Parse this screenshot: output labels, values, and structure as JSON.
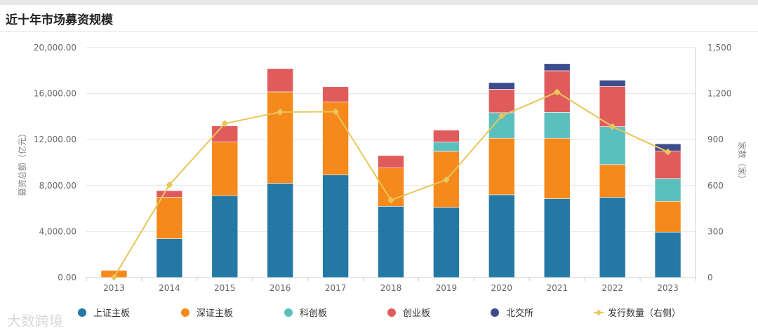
{
  "page": {
    "title": "近十年市场募资规模"
  },
  "watermark": "大数跨境",
  "colors": {
    "上证主板": "#2478a4",
    "深证主板": "#f5891b",
    "科创板": "#5bbfbe",
    "创业板": "#e05c5c",
    "北交所": "#3d4d8c",
    "line": "#e8c65a"
  },
  "chart_data": {
    "type": "bar",
    "stacked": true,
    "title": "近十年市场募资规模",
    "categories": [
      "2013",
      "2014",
      "2015",
      "2016",
      "2017",
      "2018",
      "2019",
      "2020",
      "2021",
      "2022",
      "2023"
    ],
    "series": [
      {
        "name": "上证主板",
        "values": [
          0,
          3380,
          7120,
          8200,
          8920,
          6200,
          6100,
          7200,
          6860,
          6980,
          3950
        ]
      },
      {
        "name": "深证主板",
        "values": [
          620,
          3600,
          4670,
          7960,
          6360,
          3330,
          4880,
          4920,
          5260,
          2850,
          2680
        ]
      },
      {
        "name": "科创板",
        "values": [
          0,
          0,
          0,
          0,
          0,
          0,
          800,
          2220,
          2250,
          3300,
          1980
        ]
      },
      {
        "name": "创业板",
        "values": [
          0,
          580,
          1400,
          2020,
          1320,
          1080,
          1040,
          2040,
          3620,
          3500,
          2400
        ]
      },
      {
        "name": "北交所",
        "values": [
          0,
          0,
          0,
          0,
          0,
          0,
          0,
          580,
          620,
          540,
          620
        ]
      }
    ],
    "line_series": {
      "name": "发行数量（右侧）",
      "values": [
        2,
        605,
        1005,
        1080,
        1082,
        505,
        638,
        1055,
        1210,
        985,
        820
      ]
    },
    "ylim": [
      0,
      20000
    ],
    "y_ticks": [
      "0.00",
      "4,000.00",
      "8,000.00",
      "12,000.00",
      "16,000.00",
      "20,000.00"
    ],
    "y2lim": [
      0,
      1500
    ],
    "y2_ticks": [
      "0",
      "300",
      "600",
      "900",
      "1,200",
      "1,500"
    ],
    "ylabel": "募资总额（亿元）",
    "y2label": "家数（家）",
    "legend": [
      "上证主板",
      "深证主板",
      "科创板",
      "创业板",
      "北交所",
      "发行数量（右侧）"
    ]
  }
}
